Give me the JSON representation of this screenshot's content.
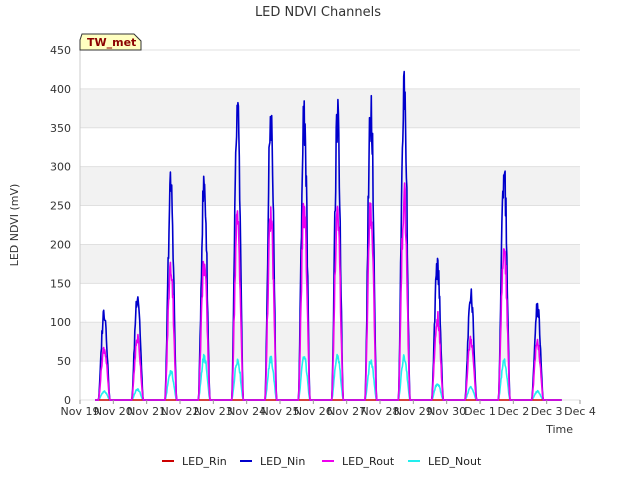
{
  "chart_data": {
    "type": "line",
    "title": "LED NDVI Channels",
    "xlabel": "Time",
    "ylabel": "LED NDVI (mV)",
    "badge": "TW_met",
    "ylim": [
      0,
      450
    ],
    "yticks": [
      0,
      50,
      100,
      150,
      200,
      250,
      300,
      350,
      400,
      450
    ],
    "xlim": [
      "2024-11-19",
      "2024-12-04"
    ],
    "xticks": [
      "Nov 19",
      "Nov 20",
      "Nov 21",
      "Nov 22",
      "Nov 23",
      "Nov 24",
      "Nov 25",
      "Nov 26",
      "Nov 27",
      "Nov 28",
      "Nov 29",
      "Nov 30",
      "Dec 1",
      "Dec 2",
      "Dec 3",
      "Dec 4"
    ],
    "grid": "horizontal bands",
    "legend_position": "bottom-center",
    "series": [
      {
        "name": "LED_Rin",
        "color": "#cc0000"
      },
      {
        "name": "LED_Nin",
        "color": "#0000cc"
      },
      {
        "name": "LED_Rout",
        "color": "#ee00ee"
      },
      {
        "name": "LED_Nout",
        "color": "#22eeee"
      }
    ],
    "daily_peaks": [
      {
        "date": "2024-11-19",
        "LED_Nin": 125,
        "LED_Rout": 73,
        "LED_Nout": 12
      },
      {
        "date": "2024-11-20",
        "LED_Nin": 150,
        "LED_Rout": 87,
        "LED_Nout": 15
      },
      {
        "date": "2024-11-21",
        "LED_Nin": 301,
        "LED_Rout": 188,
        "LED_Nout": 40
      },
      {
        "date": "2024-11-22",
        "LED_Nin": 304,
        "LED_Rout": 192,
        "LED_Nout": 60
      },
      {
        "date": "2024-11-23",
        "LED_Nin": 400,
        "LED_Rout": 255,
        "LED_Nout": 57
      },
      {
        "date": "2024-11-24",
        "LED_Nin": 395,
        "LED_Rout": 255,
        "LED_Nout": 57
      },
      {
        "date": "2024-11-25",
        "LED_Nin": 403,
        "LED_Rout": 265,
        "LED_Nout": 60
      },
      {
        "date": "2024-11-26",
        "LED_Nin": 392,
        "LED_Rout": 257,
        "LED_Nout": 62
      },
      {
        "date": "2024-11-27",
        "LED_Nin": 418,
        "LED_Rout": 268,
        "LED_Nout": 55
      },
      {
        "date": "2024-11-28",
        "LED_Nin": 439,
        "LED_Rout": 285,
        "LED_Nout": 60
      },
      {
        "date": "2024-11-29",
        "LED_Nin": 189,
        "LED_Rout": 115,
        "LED_Nout": 23
      },
      {
        "date": "2024-11-30",
        "LED_Nin": 148,
        "LED_Rout": 87,
        "LED_Nout": 18
      },
      {
        "date": "2024-12-01",
        "LED_Nin": 318,
        "LED_Rout": 214,
        "LED_Nout": 55
      },
      {
        "date": "2024-12-02",
        "LED_Nin": 130,
        "LED_Rout": 80,
        "LED_Nout": 12
      }
    ]
  }
}
